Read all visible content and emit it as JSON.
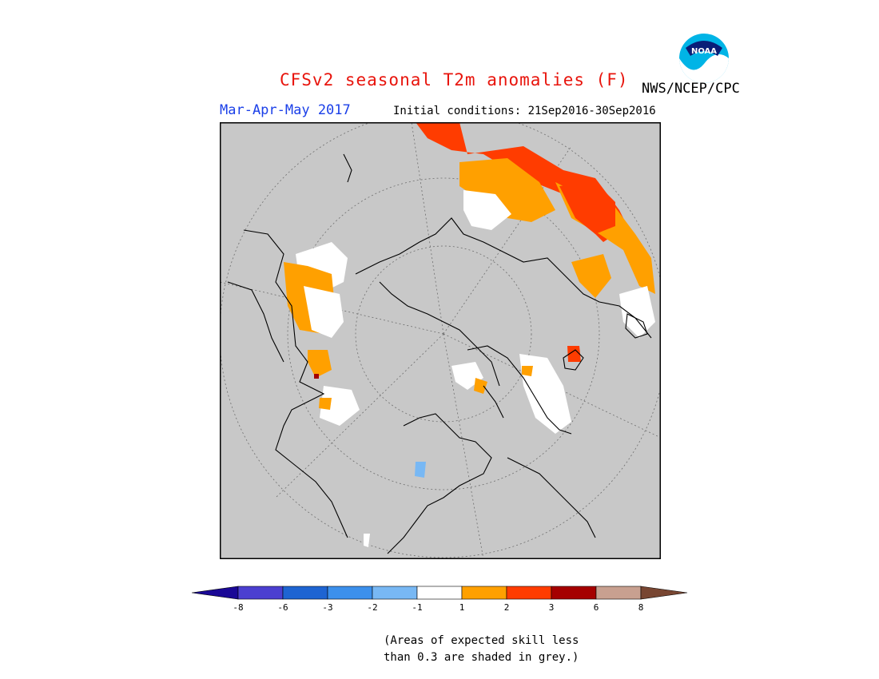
{
  "title": "CFSv2 seasonal T2m anomalies (F)",
  "agency": "NWS/NCEP/CPC",
  "logo_text": "NOAA",
  "season": "Mar-Apr-May 2017",
  "initial_conditions": "Initial conditions: 21Sep2016-30Sep2016",
  "note_line1": "(Areas of expected skill less",
  "note_line2": "than 0.3 are shaded in grey.)",
  "colors": {
    "no_skill": "#c8c8c8",
    "title": "#e8140c",
    "season": "#1a3fe8"
  },
  "colorbar": {
    "segments": [
      {
        "color": "#1a0896"
      },
      {
        "color": "#4b3fd0"
      },
      {
        "color": "#1e64d2"
      },
      {
        "color": "#3c90ec"
      },
      {
        "color": "#78b8f4"
      },
      {
        "color": "#ffffff"
      },
      {
        "color": "#ffa000"
      },
      {
        "color": "#ff3c00"
      },
      {
        "color": "#a50000"
      },
      {
        "color": "#c8a090"
      },
      {
        "color": "#784632"
      }
    ],
    "ticks": [
      "-8",
      "-6",
      "-3",
      "-2",
      "-1",
      "1",
      "2",
      "3",
      "6",
      "8"
    ]
  }
}
